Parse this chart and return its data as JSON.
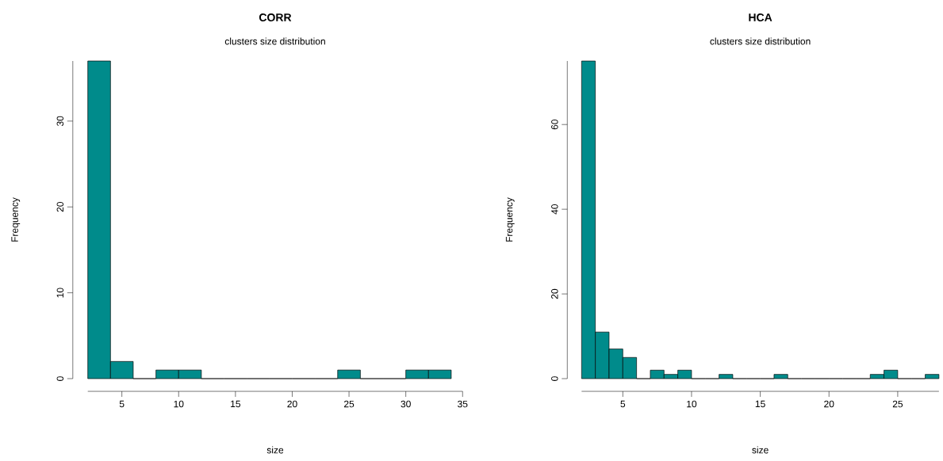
{
  "chart_data": [
    {
      "type": "histogram",
      "title": "CORR",
      "subtitle": "clusters size distribution",
      "xlabel": "size",
      "ylabel": "Frequency",
      "color": "#008b8b",
      "bins": [
        2,
        4,
        6,
        8,
        10,
        12,
        14,
        16,
        18,
        20,
        22,
        24,
        26,
        28,
        30,
        32,
        34
      ],
      "values": [
        37,
        2,
        0,
        1,
        1,
        0,
        0,
        0,
        0,
        0,
        0,
        1,
        0,
        0,
        1,
        1
      ],
      "xlim": [
        2,
        35
      ],
      "ylim": [
        0,
        37
      ],
      "xticks": [
        5,
        10,
        15,
        20,
        25,
        30,
        35
      ],
      "yticks": [
        0,
        10,
        20,
        30
      ]
    },
    {
      "type": "histogram",
      "title": "HCA",
      "subtitle": "clusters size distribution",
      "xlabel": "size",
      "ylabel": "Frequency",
      "color": "#008b8b",
      "bins": [
        2,
        3,
        4,
        5,
        6,
        7,
        8,
        9,
        10,
        11,
        12,
        13,
        14,
        15,
        16,
        17,
        18,
        19,
        20,
        21,
        22,
        23,
        24,
        25,
        26,
        27,
        28
      ],
      "values": [
        75,
        11,
        7,
        5,
        0,
        2,
        1,
        2,
        0,
        0,
        1,
        0,
        0,
        0,
        1,
        0,
        0,
        0,
        0,
        0,
        0,
        1,
        2,
        0,
        0,
        1
      ],
      "xlim": [
        2,
        28
      ],
      "ylim": [
        0,
        75
      ],
      "xticks": [
        5,
        10,
        15,
        20,
        25
      ],
      "yticks": [
        0,
        20,
        40,
        60
      ]
    }
  ]
}
